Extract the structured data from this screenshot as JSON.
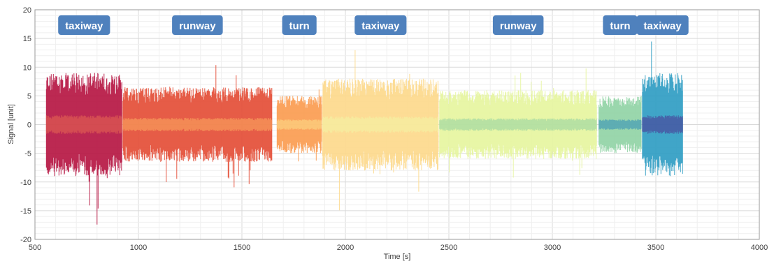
{
  "chart_data": {
    "type": "line",
    "title": "",
    "xlabel": "Time [s]",
    "ylabel": "Signal [unit]",
    "xlim": [
      500,
      4000
    ],
    "ylim": [
      -20,
      20
    ],
    "x_ticks": [
      500,
      1000,
      1500,
      2000,
      2500,
      3000,
      3500,
      4000
    ],
    "y_ticks": [
      -20,
      -15,
      -10,
      -5,
      0,
      5,
      10,
      15,
      20
    ],
    "grid": true,
    "annotation_color": "#4f81bd",
    "segments": [
      {
        "label": "taxiway",
        "x_start": 555,
        "x_end": 920,
        "amp_core": 9,
        "amp_peak": 17.5,
        "color": "#b5123f",
        "center_color": "#e86a52"
      },
      {
        "label": "runway",
        "x_start": 925,
        "x_end": 1645,
        "amp_core": 6.5,
        "amp_peak": 11,
        "color": "#e34a33",
        "center_color": "#fdae61"
      },
      {
        "label": "turn",
        "x_start": 1670,
        "x_end": 1885,
        "amp_core": 5,
        "amp_peak": 6.5,
        "color": "#fb9a4e",
        "center_color": "#fee08b"
      },
      {
        "label": "taxiway",
        "x_start": 1890,
        "x_end": 2450,
        "amp_core": 8,
        "amp_peak": 16,
        "color": "#fdd88a",
        "center_color": "#f2f5a6"
      },
      {
        "label": "runway",
        "x_start": 2455,
        "x_end": 3215,
        "amp_core": 6,
        "amp_peak": 10.5,
        "color": "#e6f59d",
        "center_color": "#8ecfa0"
      },
      {
        "label": "turn",
        "x_start": 3225,
        "x_end": 3430,
        "amp_core": 5,
        "amp_peak": 6,
        "color": "#8fd3a4",
        "center_color": "#2e8ab8"
      },
      {
        "label": "taxiway",
        "x_start": 3435,
        "x_end": 3630,
        "amp_core": 9,
        "amp_peak": 17.5,
        "color": "#2b9bc2",
        "center_color": "#4b2f8f"
      }
    ]
  }
}
